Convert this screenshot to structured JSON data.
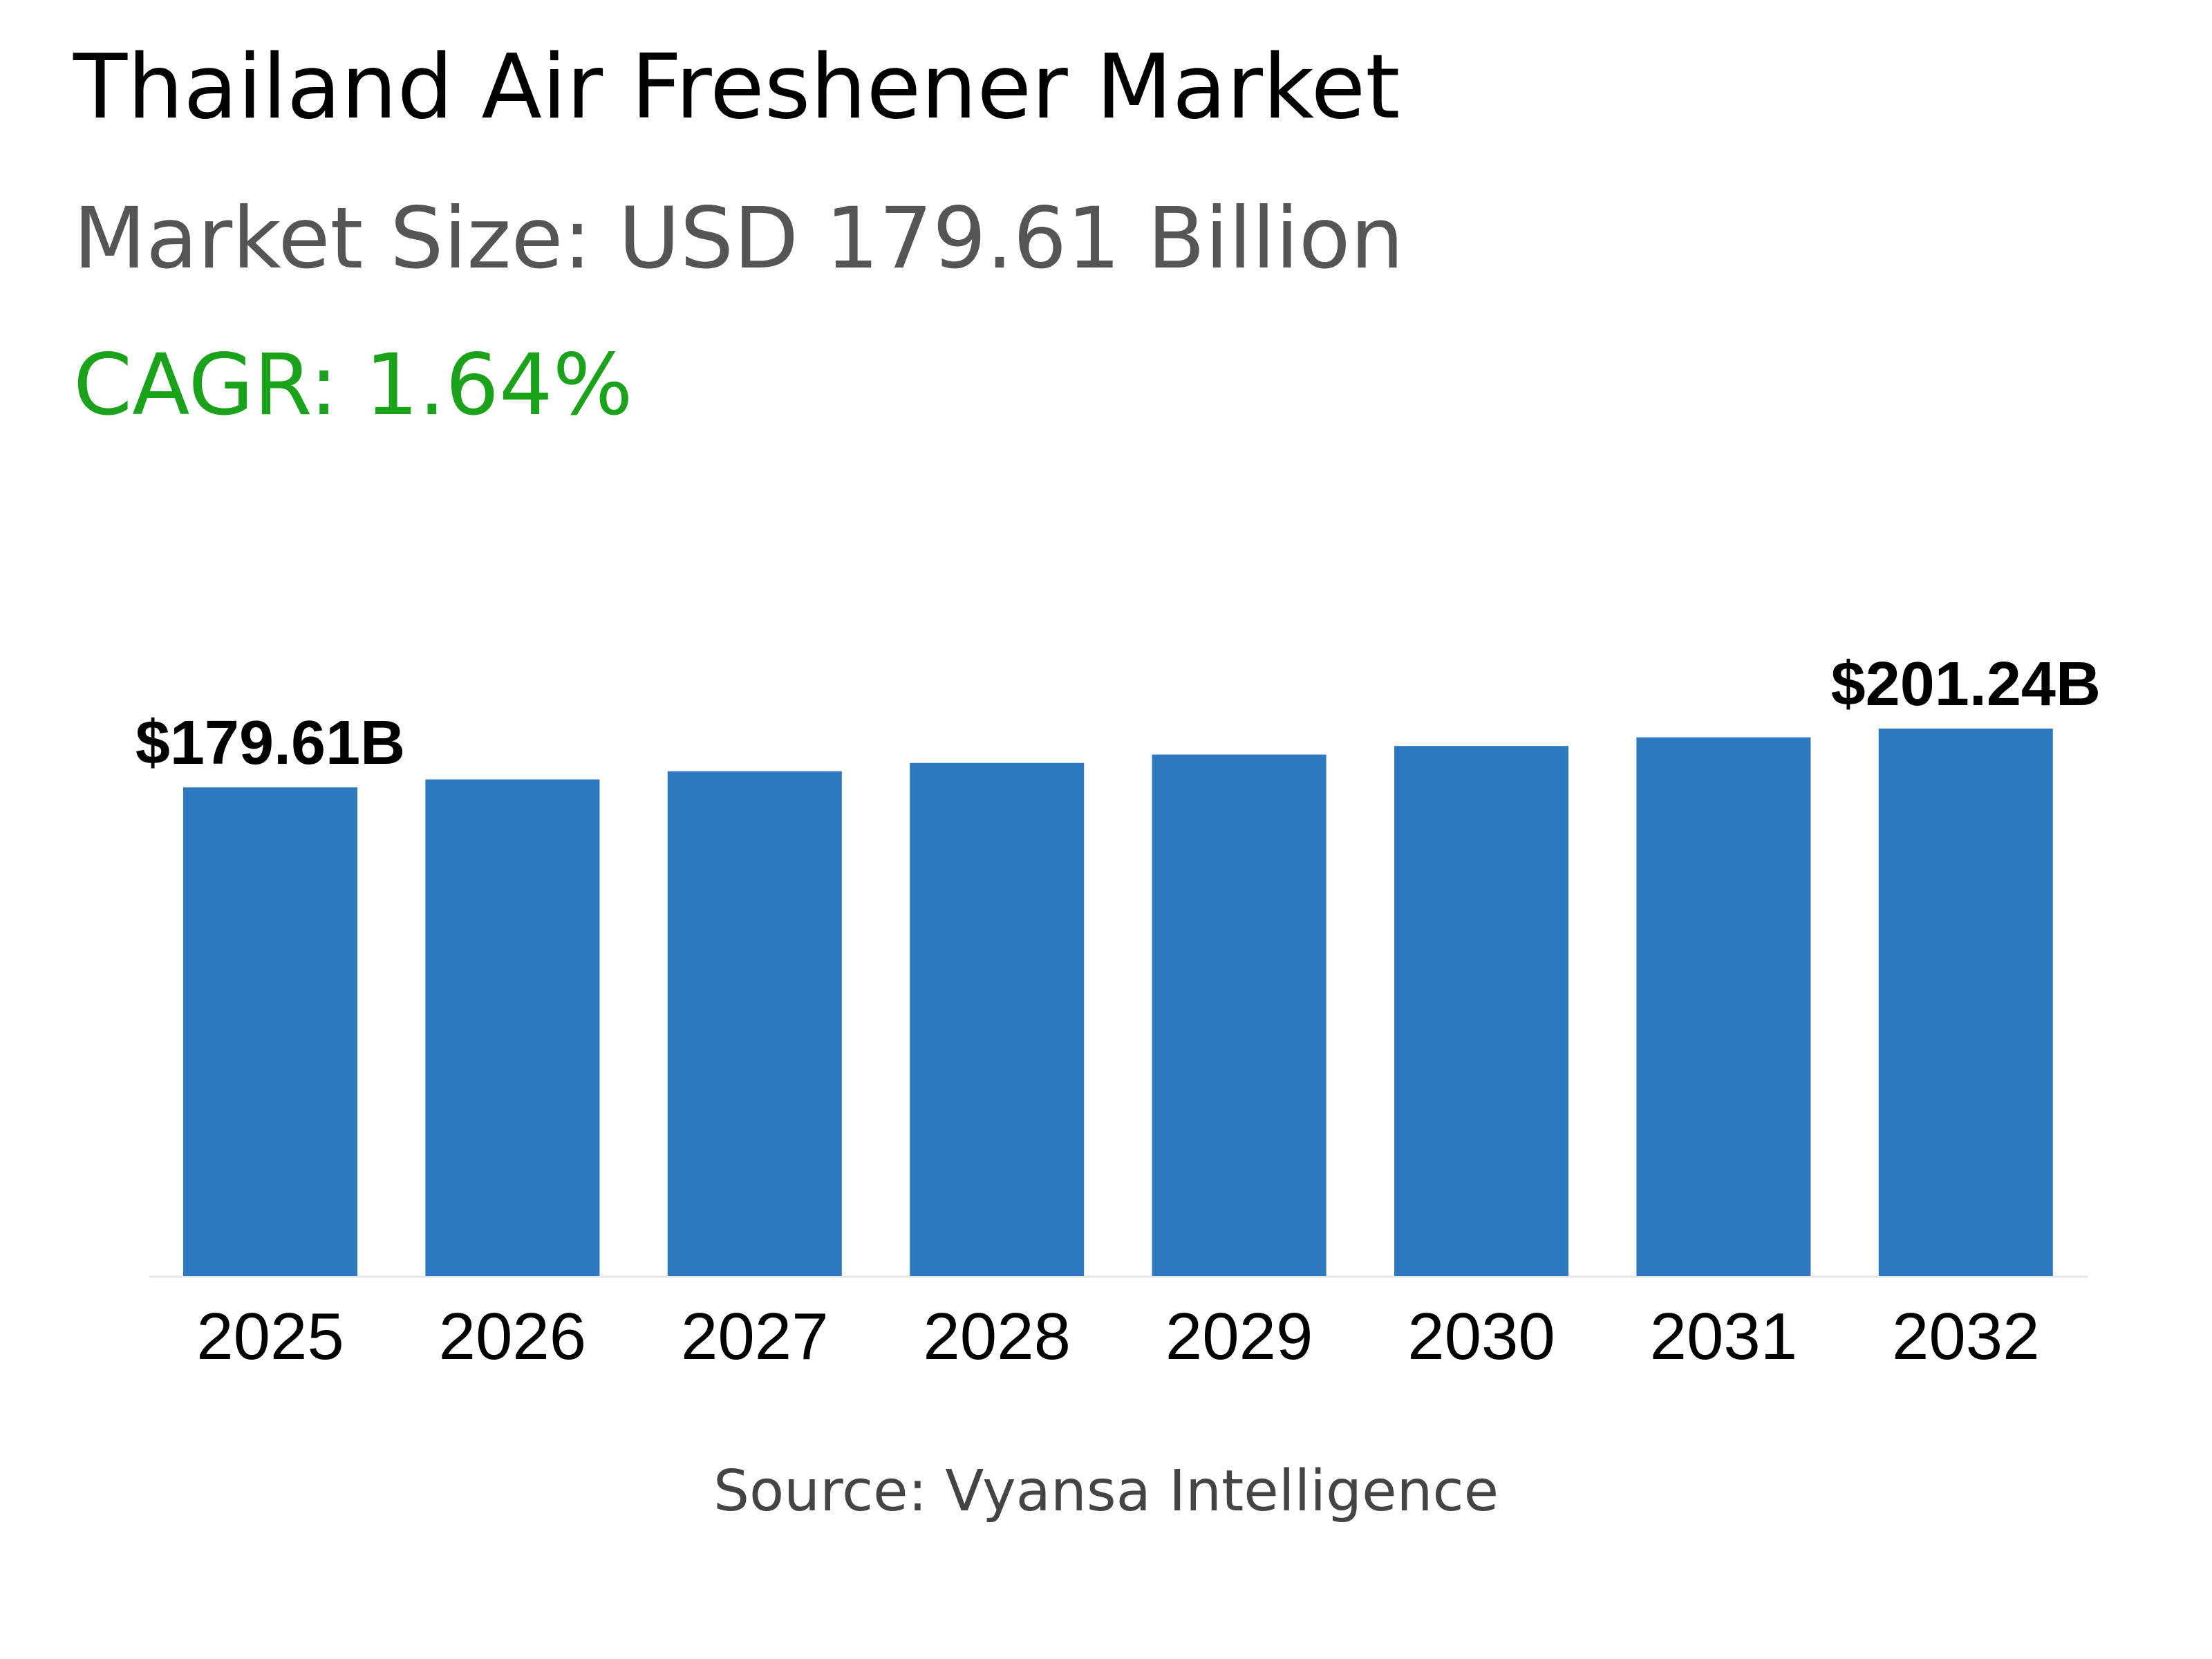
{
  "header": {
    "title": "Thailand Air Freshener Market",
    "market_size": "Market Size: USD 179.61 Billion",
    "cagr": "CAGR: 1.64%"
  },
  "footer": {
    "source": "Source: Vyansa Intelligence"
  },
  "colors": {
    "bar": "#2e78c0",
    "cagr": "#1aa31a",
    "title": "#000000",
    "subtitle": "#555555",
    "source": "#444444",
    "axis": "#e6e6e6"
  },
  "chart_data": {
    "type": "bar",
    "title": "",
    "xlabel": "",
    "ylabel": "",
    "categories": [
      "2025",
      "2026",
      "2027",
      "2028",
      "2029",
      "2030",
      "2031",
      "2032"
    ],
    "series": [
      {
        "values": [
          179.61,
          182.56,
          185.55,
          188.6,
          191.69,
          194.84,
          198.03,
          201.24
        ]
      }
    ],
    "data_labels": [
      {
        "category": "2025",
        "text": "$179.61B"
      },
      {
        "category": "2032",
        "text": "$201.24B"
      }
    ],
    "ylim": [
      0,
      201.24
    ],
    "grid": false,
    "legend": "none"
  }
}
